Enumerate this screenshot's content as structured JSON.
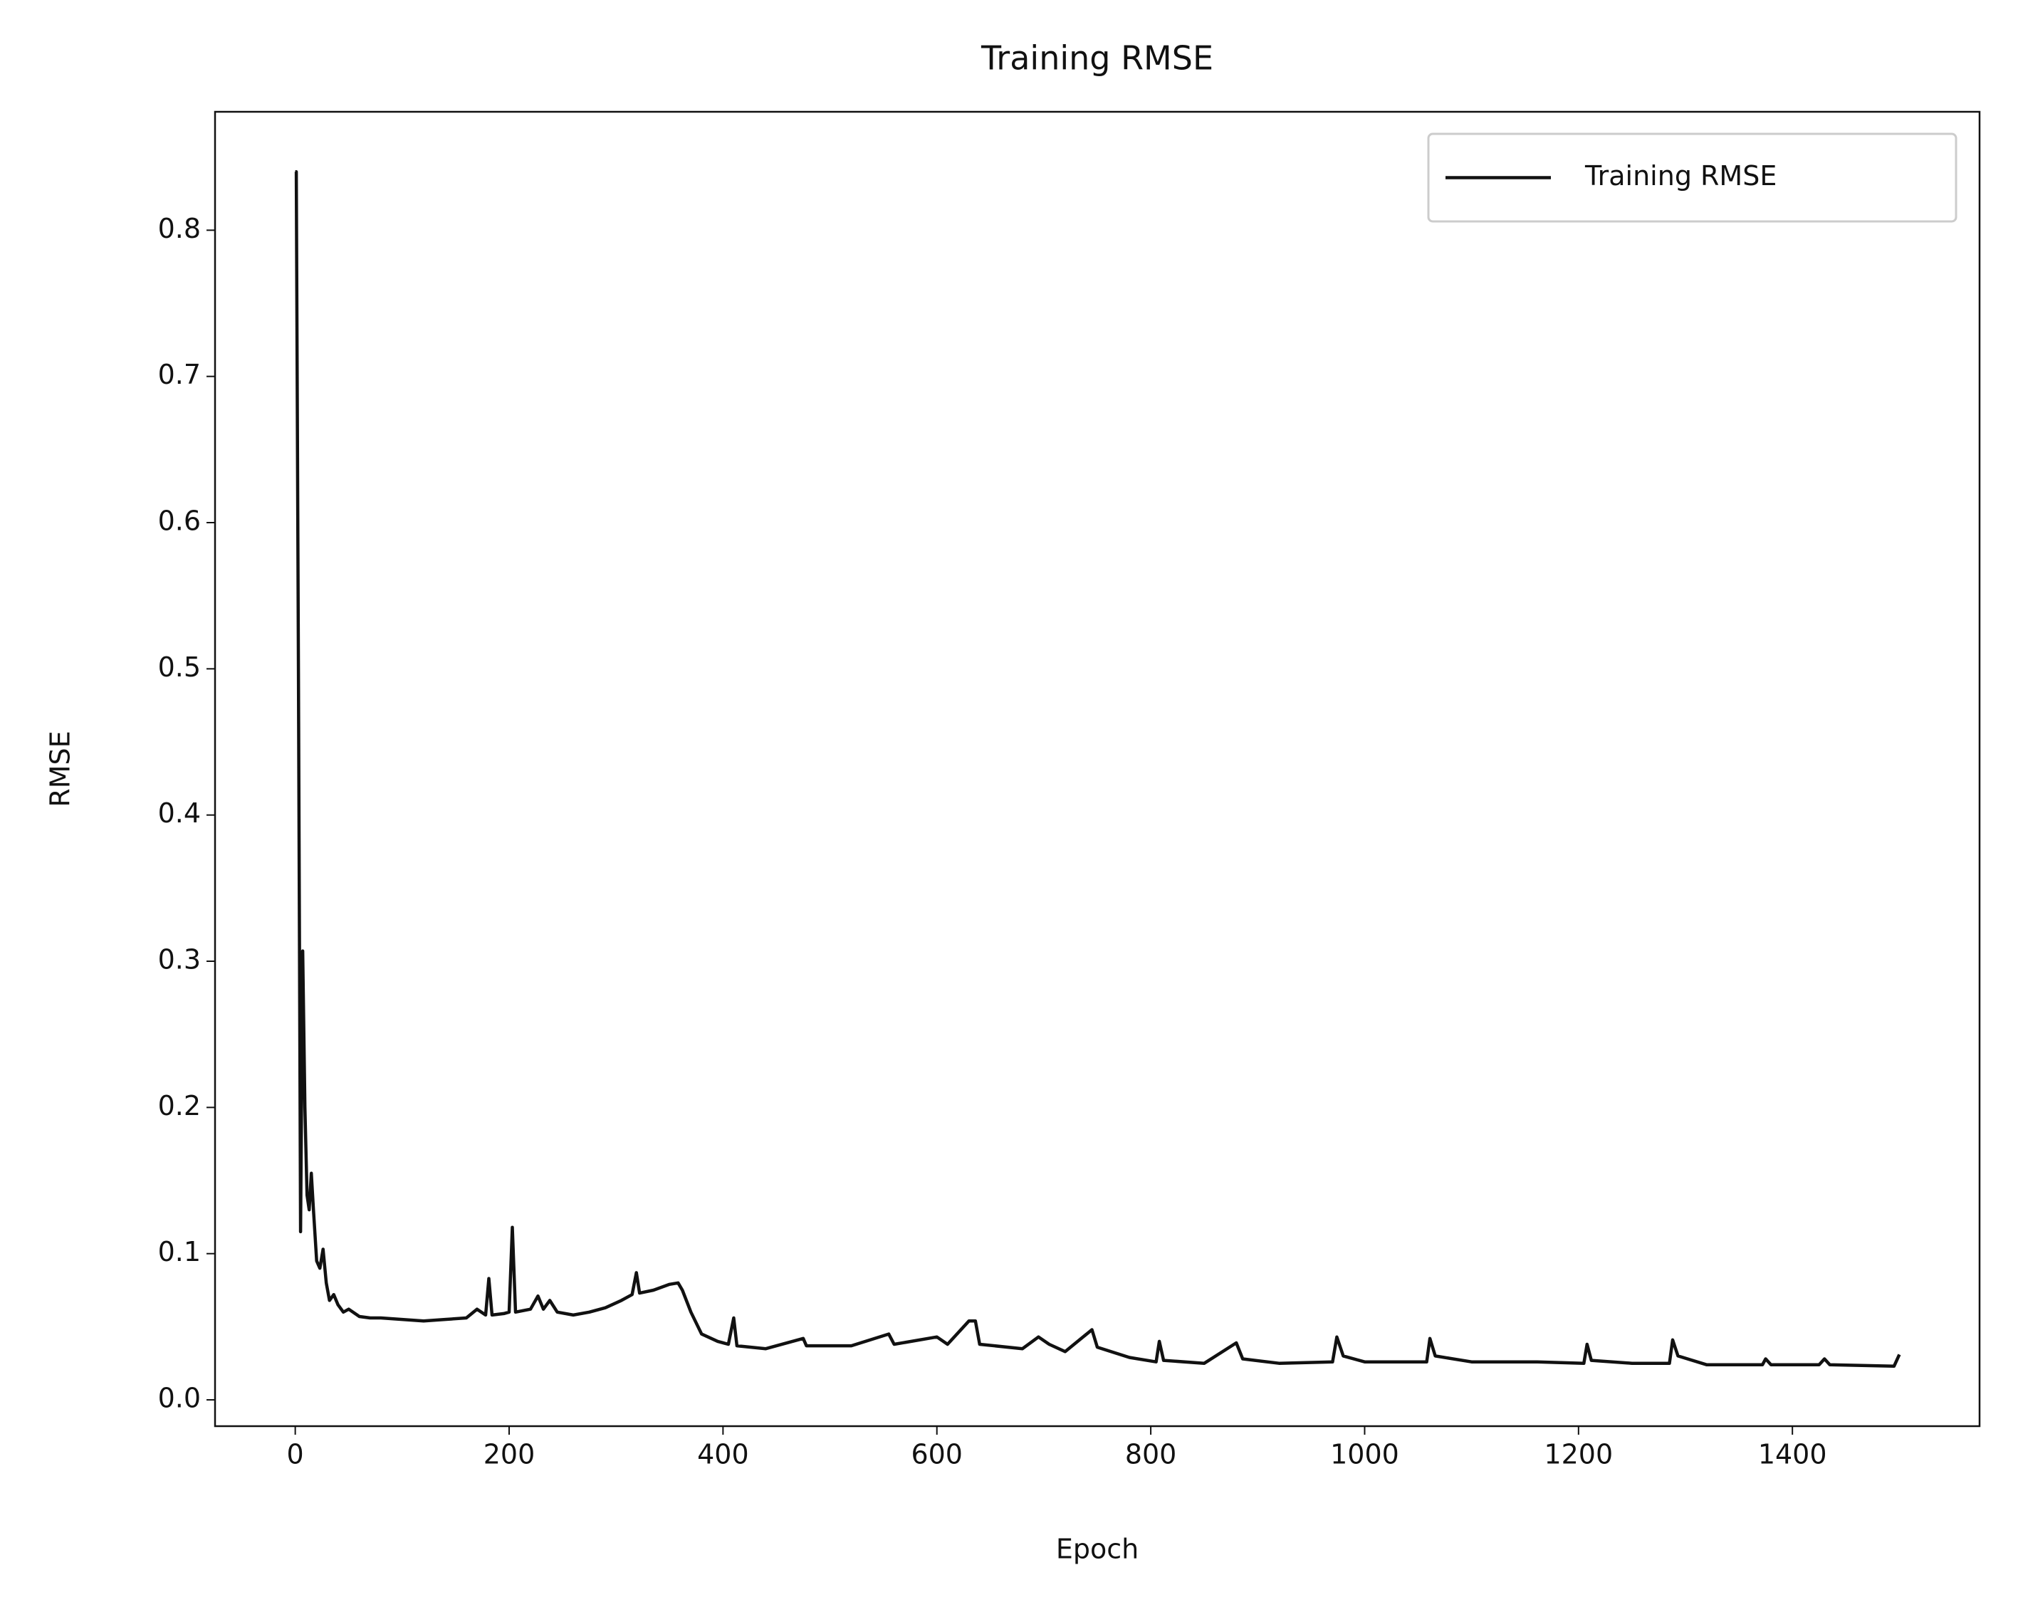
{
  "chart_data": {
    "type": "line",
    "title": "Training RMSE",
    "x_label": "Epoch",
    "y_label": "RMSE",
    "legend": "upper right",
    "xlim": [
      -75,
      1575
    ],
    "xticks": [
      0,
      200,
      400,
      600,
      800,
      1000,
      1200,
      1400
    ],
    "ylim": [
      -0.018,
      0.881
    ],
    "yticks": [
      {
        "value": 0,
        "label": "0.0"
      },
      0.1,
      0.2,
      0.3,
      0.4,
      0.5,
      0.6,
      0.7,
      0.8
    ],
    "series": [
      {
        "name": "Training RMSE",
        "color": "#111111",
        "x": [
          0,
          1,
          3,
          5,
          7,
          9,
          11,
          13,
          15,
          17,
          20,
          23,
          26,
          29,
          32,
          36,
          40,
          45,
          50,
          60,
          70,
          80,
          100,
          120,
          140,
          160,
          170,
          178,
          181,
          184,
          195,
          200,
          203,
          206,
          220,
          227,
          232,
          238,
          245,
          260,
          275,
          290,
          305,
          315,
          319,
          322,
          335,
          350,
          358,
          362,
          370,
          380,
          395,
          405,
          410,
          413,
          440,
          475,
          478,
          520,
          555,
          560,
          600,
          610,
          630,
          636,
          640,
          680,
          695,
          705,
          720,
          745,
          750,
          780,
          805,
          808,
          812,
          850,
          880,
          886,
          920,
          970,
          974,
          980,
          1000,
          1058,
          1061,
          1066,
          1100,
          1160,
          1205,
          1208,
          1212,
          1250,
          1285,
          1288,
          1293,
          1320,
          1372,
          1375,
          1380,
          1425,
          1430,
          1435,
          1495,
          1500
        ],
        "values": [
          0.84,
          0.84,
          0.5,
          0.115,
          0.307,
          0.2,
          0.14,
          0.13,
          0.155,
          0.13,
          0.095,
          0.09,
          0.103,
          0.08,
          0.068,
          0.072,
          0.065,
          0.06,
          0.062,
          0.057,
          0.056,
          0.056,
          0.055,
          0.054,
          0.055,
          0.056,
          0.062,
          0.058,
          0.083,
          0.058,
          0.059,
          0.06,
          0.118,
          0.06,
          0.062,
          0.071,
          0.062,
          0.068,
          0.06,
          0.058,
          0.06,
          0.063,
          0.068,
          0.072,
          0.087,
          0.073,
          0.075,
          0.079,
          0.08,
          0.075,
          0.06,
          0.045,
          0.04,
          0.038,
          0.056,
          0.037,
          0.035,
          0.042,
          0.037,
          0.037,
          0.045,
          0.038,
          0.043,
          0.038,
          0.054,
          0.054,
          0.038,
          0.035,
          0.043,
          0.038,
          0.033,
          0.048,
          0.036,
          0.029,
          0.026,
          0.04,
          0.027,
          0.025,
          0.039,
          0.028,
          0.025,
          0.026,
          0.043,
          0.03,
          0.026,
          0.026,
          0.042,
          0.03,
          0.026,
          0.026,
          0.025,
          0.038,
          0.027,
          0.025,
          0.025,
          0.041,
          0.03,
          0.024,
          0.024,
          0.028,
          0.024,
          0.024,
          0.028,
          0.024,
          0.023,
          0.031
        ]
      }
    ]
  }
}
